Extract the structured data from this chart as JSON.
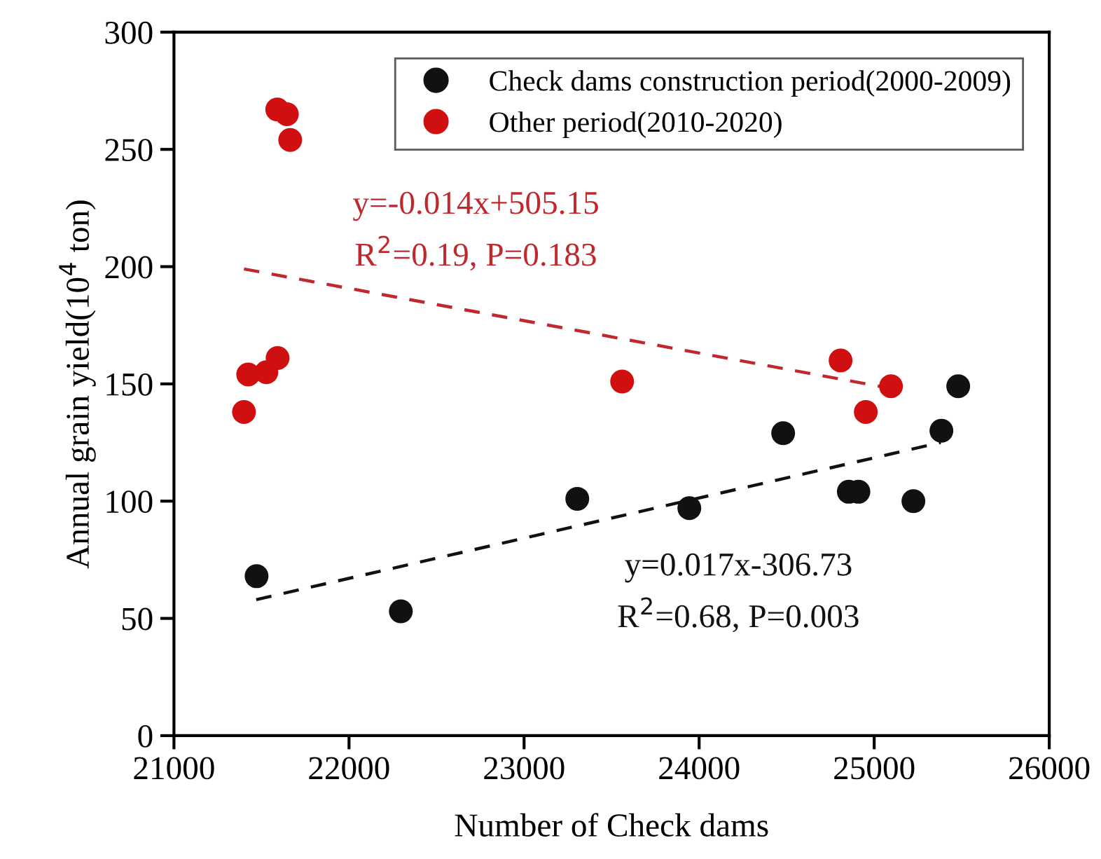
{
  "chart_data": {
    "type": "scatter",
    "xlabel": "Number of Check dams",
    "ylabel": "Annual grain yield(10$^{4}$ ton)",
    "xlim": [
      21000,
      26000
    ],
    "xticks": [
      21000,
      22000,
      23000,
      24000,
      25000,
      26000
    ],
    "ylim": [
      0,
      300
    ],
    "yticks": [
      0,
      50,
      100,
      150,
      200,
      250,
      300
    ],
    "grid": false,
    "legend": "top right",
    "marker": "circle",
    "series": [
      {
        "name": "Check dams construction period(2000-2009)",
        "color": "#111111",
        "x": [
          21472,
          22296,
          23304,
          23944,
          24480,
          24855,
          24910,
          25224,
          25384,
          25480
        ],
        "values": [
          68,
          53,
          101,
          97,
          129,
          104,
          104,
          100,
          130,
          149
        ]
      },
      {
        "name": "Other period(2010-2020)",
        "color": "#d01010",
        "x": [
          21400,
          21424,
          21528,
          21592,
          21590,
          21645,
          21664,
          23560,
          24808,
          24952,
          25096
        ],
        "values": [
          138,
          154,
          155,
          161,
          267,
          265,
          254,
          151,
          160,
          138,
          149
        ]
      },
      {
        "type": "line",
        "color": "#c0282d",
        "line_style": "dashed",
        "marker": "none",
        "x": [
          21400,
          25100
        ],
        "values": [
          199,
          148
        ]
      },
      {
        "type": "line",
        "color": "#111111",
        "line_style": "dashed",
        "marker": "none",
        "x": [
          21470,
          25380
        ],
        "values": [
          58,
          125
        ]
      }
    ],
    "annotations": [
      "y=-0.014x+505.15",
      "R$^{2}$=0.19, P=0.183",
      "y=0.017x-306.73",
      "R$^{2}$=0.68, P=0.003"
    ]
  }
}
